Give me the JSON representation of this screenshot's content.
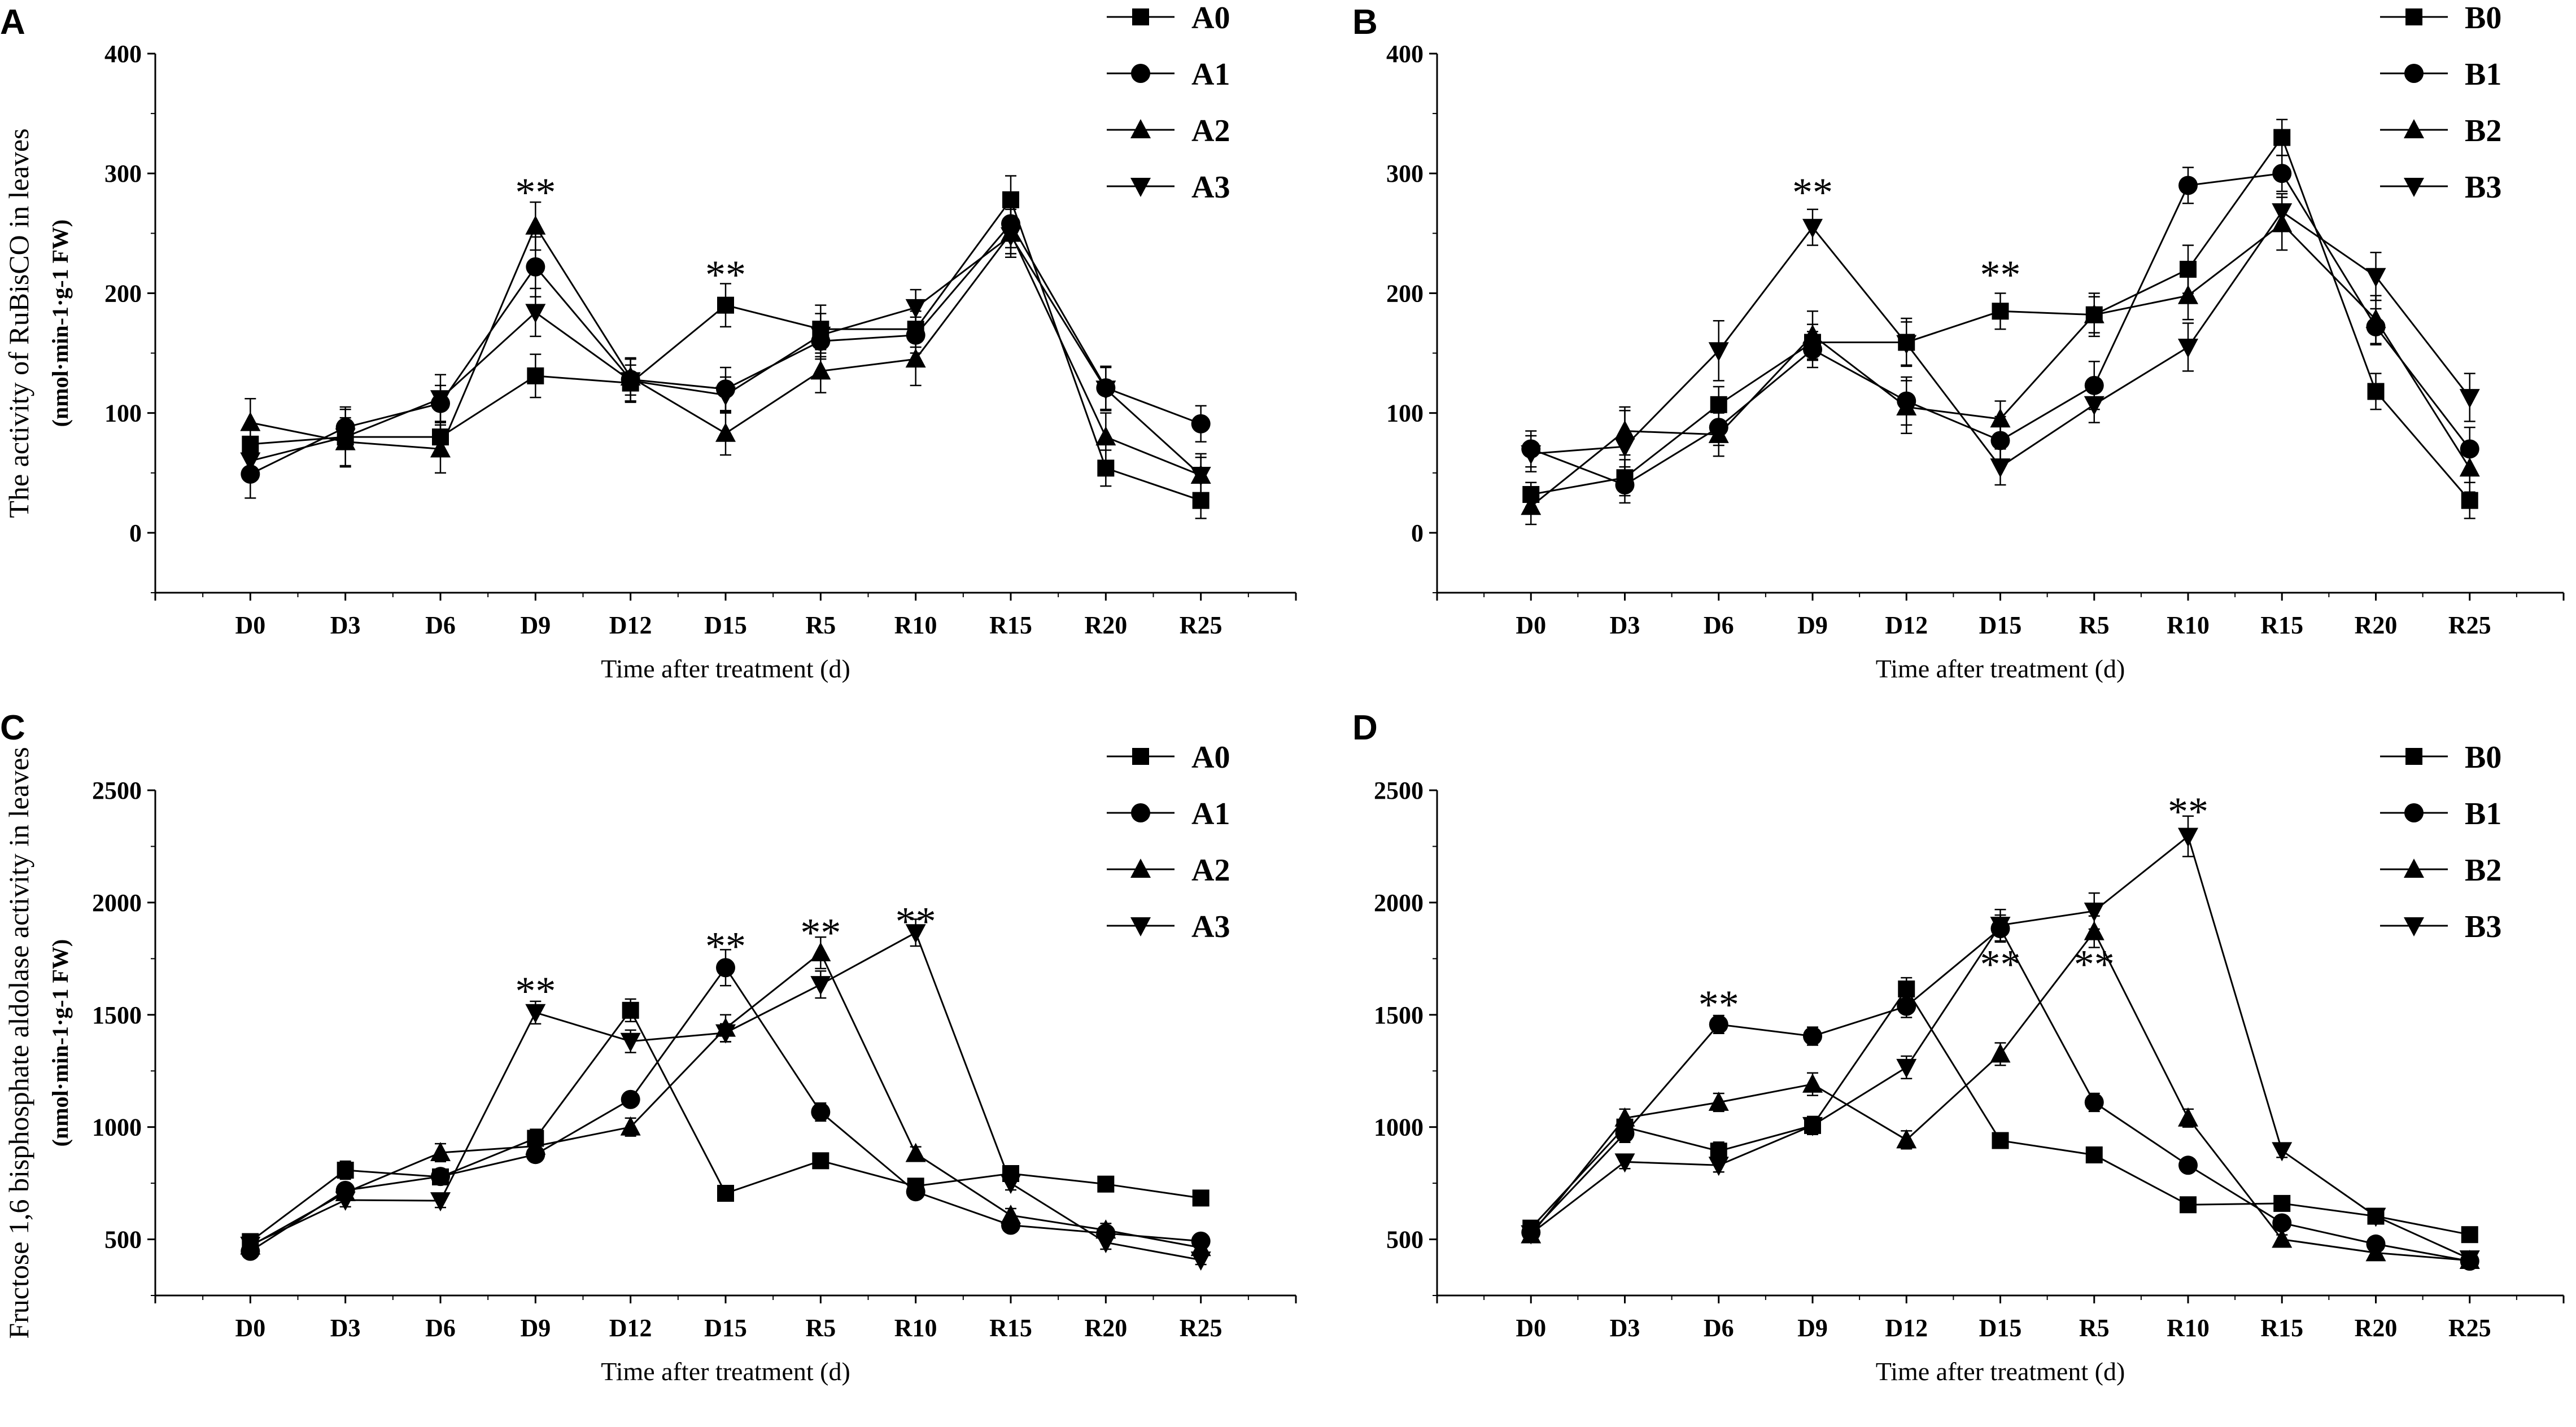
{
  "chart_data": [
    {
      "panel": "A",
      "type": "line",
      "xlabel": "Time after treatment (d)",
      "ylabel": "The activity of RuBisCO in leaves",
      "ylabel_unit": "(nmol·min-1·g-1 FW)",
      "ylim": [
        -50,
        400
      ],
      "yticks": [
        0,
        100,
        200,
        300,
        400
      ],
      "categories": [
        "D0",
        "D3",
        "D6",
        "D9",
        "D12",
        "D15",
        "R5",
        "R10",
        "R15",
        "R20",
        "R25"
      ],
      "series": [
        {
          "name": "A0",
          "marker": "square",
          "values": [
            74,
            80,
            80,
            131,
            125,
            190,
            170,
            170,
            278,
            54,
            27
          ],
          "errors": [
            5,
            10,
            12,
            18,
            15,
            18,
            20,
            15,
            20,
            15,
            15
          ]
        },
        {
          "name": "A1",
          "marker": "circle",
          "values": [
            49,
            88,
            108,
            222,
            128,
            120,
            160,
            165,
            258,
            121,
            91
          ],
          "errors": [
            20,
            15,
            15,
            25,
            18,
            18,
            15,
            15,
            20,
            18,
            15
          ]
        },
        {
          "name": "A2",
          "marker": "triangle-up",
          "values": [
            92,
            76,
            70,
            256,
            130,
            83,
            135,
            145,
            250,
            80,
            48
          ],
          "errors": [
            20,
            20,
            20,
            20,
            15,
            18,
            18,
            22,
            20,
            20,
            15
          ]
        },
        {
          "name": "A3",
          "marker": "triangle-down",
          "values": [
            60,
            80,
            112,
            184,
            127,
            115,
            165,
            188,
            248,
            120,
            48
          ],
          "errors": [
            15,
            25,
            20,
            20,
            18,
            15,
            18,
            15,
            15,
            18,
            18
          ]
        }
      ],
      "annotations": [
        {
          "text": "**",
          "category": "D9",
          "y": 287
        },
        {
          "text": "**",
          "category": "D15",
          "y": 218
        }
      ]
    },
    {
      "panel": "B",
      "type": "line",
      "xlabel": "Time after treatment (d)",
      "ylim": [
        -50,
        400
      ],
      "yticks": [
        0,
        100,
        200,
        300,
        400
      ],
      "categories": [
        "D0",
        "D3",
        "D6",
        "D9",
        "D12",
        "D15",
        "R5",
        "R10",
        "R15",
        "R20",
        "R25"
      ],
      "series": [
        {
          "name": "B0",
          "marker": "square",
          "values": [
            32,
            46,
            107,
            159,
            159,
            185,
            182,
            220,
            330,
            118,
            27
          ],
          "errors": [
            10,
            15,
            15,
            15,
            20,
            15,
            15,
            20,
            15,
            15,
            15
          ]
        },
        {
          "name": "B1",
          "marker": "circle",
          "values": [
            70,
            40,
            88,
            153,
            110,
            77,
            123,
            290,
            300,
            172,
            70
          ],
          "errors": [
            15,
            15,
            15,
            15,
            20,
            20,
            20,
            15,
            15,
            15,
            18
          ]
        },
        {
          "name": "B2",
          "marker": "triangle-up",
          "values": [
            22,
            85,
            82,
            165,
            105,
            95,
            182,
            198,
            258,
            178,
            54
          ],
          "errors": [
            15,
            20,
            18,
            20,
            22,
            15,
            18,
            20,
            22,
            20,
            20
          ]
        },
        {
          "name": "B3",
          "marker": "triangle-down",
          "values": [
            66,
            72,
            152,
            255,
            158,
            55,
            107,
            155,
            268,
            214,
            113
          ],
          "errors": [
            15,
            30,
            25,
            15,
            18,
            15,
            15,
            20,
            15,
            20,
            20
          ]
        }
      ],
      "annotations": [
        {
          "text": "**",
          "category": "D9",
          "y": 287
        },
        {
          "text": "**",
          "category": "D15",
          "y": 218
        }
      ]
    },
    {
      "panel": "C",
      "type": "line",
      "xlabel": "Time after treatment (d)",
      "ylabel": "Fructose 1,6 bisphosphate aldolase activity in leaves",
      "ylabel_unit": "(nmol·min-1·g-1 FW)",
      "ylim": [
        250,
        2500
      ],
      "yticks": [
        500,
        1000,
        1500,
        2000,
        2500
      ],
      "categories": [
        "D0",
        "D3",
        "D6",
        "D9",
        "D12",
        "D15",
        "R5",
        "R10",
        "R15",
        "R20",
        "R25"
      ],
      "series": [
        {
          "name": "A0",
          "marker": "square",
          "values": [
            490,
            808,
            778,
            950,
            1520,
            705,
            850,
            737,
            793,
            746,
            684
          ],
          "errors": [
            20,
            40,
            30,
            40,
            50,
            20,
            30,
            30,
            30,
            20,
            20
          ]
        },
        {
          "name": "A1",
          "marker": "circle",
          "values": [
            447,
            718,
            780,
            878,
            1123,
            1710,
            1067,
            712,
            563,
            527,
            492
          ],
          "errors": [
            20,
            30,
            30,
            30,
            30,
            80,
            40,
            30,
            30,
            20,
            20
          ]
        },
        {
          "name": "A2",
          "marker": "triangle-up",
          "values": [
            470,
            708,
            886,
            915,
            1000,
            1440,
            1776,
            882,
            607,
            541,
            463
          ],
          "errors": [
            20,
            30,
            40,
            30,
            40,
            60,
            70,
            30,
            30,
            30,
            20
          ]
        },
        {
          "name": "A3",
          "marker": "triangle-down",
          "values": [
            474,
            675,
            672,
            1510,
            1382,
            1420,
            1635,
            1866,
            750,
            486,
            408
          ],
          "errors": [
            20,
            30,
            30,
            50,
            50,
            40,
            60,
            60,
            30,
            30,
            20
          ]
        }
      ],
      "annotations": [
        {
          "text": "**",
          "category": "D9",
          "y": 1620
        },
        {
          "text": "**",
          "category": "D15",
          "y": 1820
        },
        {
          "text": "**",
          "category": "R5",
          "y": 1880
        },
        {
          "text": "**",
          "category": "R10",
          "y": 1930
        }
      ]
    },
    {
      "panel": "D",
      "type": "line",
      "xlabel": "Time after treatment (d)",
      "ylim": [
        250,
        2500
      ],
      "yticks": [
        500,
        1000,
        1500,
        2000,
        2500
      ],
      "categories": [
        "D0",
        "D3",
        "D6",
        "D9",
        "D12",
        "D15",
        "R5",
        "R10",
        "R15",
        "R20",
        "R25"
      ],
      "series": [
        {
          "name": "B0",
          "marker": "square",
          "values": [
            550,
            1000,
            893,
            1007,
            1615,
            940,
            876,
            654,
            660,
            603,
            521
          ],
          "errors": [
            20,
            40,
            40,
            40,
            50,
            30,
            30,
            20,
            20,
            20,
            20
          ]
        },
        {
          "name": "B1",
          "marker": "circle",
          "values": [
            531,
            972,
            1457,
            1405,
            1538,
            1884,
            1110,
            830,
            573,
            479,
            403
          ],
          "errors": [
            20,
            40,
            40,
            40,
            50,
            60,
            40,
            30,
            30,
            20,
            20
          ]
        },
        {
          "name": "B2",
          "marker": "triangle-up",
          "values": [
            520,
            1040,
            1110,
            1191,
            943,
            1325,
            1870,
            1040,
            500,
            440,
            406
          ],
          "errors": [
            20,
            40,
            40,
            50,
            40,
            50,
            70,
            40,
            20,
            20,
            20
          ]
        },
        {
          "name": "B3",
          "marker": "triangle-down",
          "values": [
            525,
            845,
            830,
            1007,
            1266,
            1899,
            1962,
            2295,
            895,
            603,
            413
          ],
          "errors": [
            20,
            30,
            30,
            40,
            50,
            70,
            80,
            90,
            30,
            30,
            20
          ]
        }
      ],
      "annotations": [
        {
          "text": "**",
          "category": "D6",
          "y": 1560
        },
        {
          "text": "**",
          "category": "D15",
          "y": 1740
        },
        {
          "text": "**",
          "category": "R5",
          "y": 1740
        },
        {
          "text": "**",
          "category": "R10",
          "y": 2420
        }
      ]
    }
  ]
}
